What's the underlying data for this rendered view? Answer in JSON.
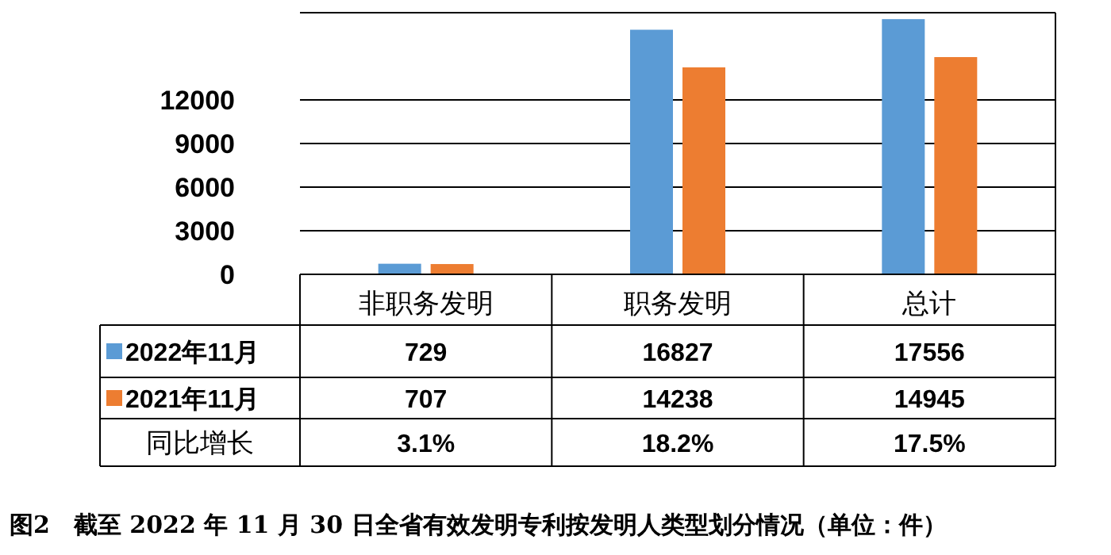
{
  "chart_data": {
    "type": "bar",
    "categories": [
      "非职务发明",
      "职务发明",
      "总计"
    ],
    "series": [
      {
        "name": "2022年11月",
        "color": "#5b9bd5",
        "values": [
          729,
          16827,
          17556
        ]
      },
      {
        "name": "2021年11月",
        "color": "#ed7d31",
        "values": [
          707,
          14238,
          14945
        ]
      }
    ],
    "ylim": [
      0,
      18000
    ],
    "yticks": [
      0,
      3000,
      6000,
      9000,
      12000
    ],
    "grid": "y",
    "legend": "bottom",
    "data_labels": true,
    "annotations": [
      "同比增长",
      "3.1%",
      "18.2%",
      "17.5%",
      "图2　截至 2022 年 11 月 30 日全省有效发明专利按发明人类型划分情况（单位：件）"
    ]
  }
}
